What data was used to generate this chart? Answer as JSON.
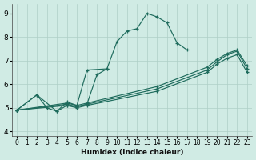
{
  "xlabel": "Humidex (Indice chaleur)",
  "bg_color": "#d0ebe4",
  "grid_color": "#aecfc7",
  "line_color": "#1e6b5c",
  "xlim": [
    -0.5,
    23.5
  ],
  "ylim": [
    3.8,
    9.4
  ],
  "xticks": [
    0,
    1,
    2,
    3,
    4,
    5,
    6,
    7,
    8,
    9,
    10,
    11,
    12,
    13,
    14,
    15,
    16,
    17,
    18,
    19,
    20,
    21,
    22,
    23
  ],
  "yticks": [
    4,
    5,
    6,
    7,
    8,
    9
  ],
  "line_main": {
    "x": [
      0,
      2,
      3,
      4,
      5,
      6,
      7,
      8,
      9,
      10,
      11,
      12,
      13,
      14,
      15,
      16,
      17
    ],
    "y": [
      4.9,
      5.55,
      5.0,
      4.85,
      5.1,
      5.05,
      5.15,
      6.4,
      6.65,
      7.8,
      8.25,
      8.35,
      9.0,
      8.85,
      8.6,
      7.75,
      7.45
    ]
  },
  "line_short": {
    "x": [
      0,
      2,
      4,
      5,
      6,
      7,
      9
    ],
    "y": [
      4.9,
      5.55,
      4.85,
      5.25,
      5.1,
      6.6,
      6.65
    ]
  },
  "line_flat1": {
    "x": [
      0,
      5,
      6,
      7,
      14,
      19,
      20,
      21,
      22,
      23
    ],
    "y": [
      4.9,
      5.1,
      5.0,
      5.1,
      5.7,
      6.5,
      6.85,
      7.1,
      7.25,
      6.5
    ]
  },
  "line_flat2": {
    "x": [
      0,
      5,
      6,
      7,
      14,
      19,
      20,
      21,
      22,
      23
    ],
    "y": [
      4.9,
      5.15,
      5.05,
      5.15,
      5.8,
      6.6,
      6.95,
      7.25,
      7.4,
      6.65
    ]
  },
  "line_flat3": {
    "x": [
      0,
      5,
      6,
      7,
      14,
      19,
      20,
      21,
      22,
      23
    ],
    "y": [
      4.9,
      5.2,
      5.1,
      5.2,
      5.9,
      6.72,
      7.05,
      7.3,
      7.45,
      6.78
    ]
  }
}
